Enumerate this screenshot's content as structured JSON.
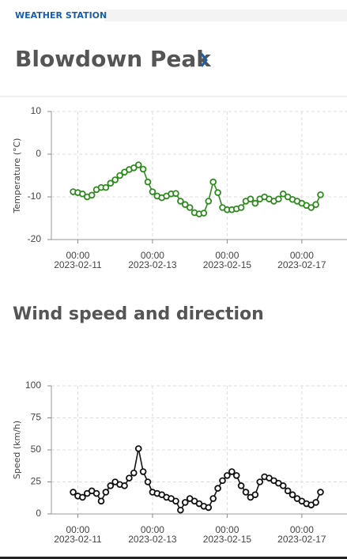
{
  "header": {
    "label": "WEATHER STATION",
    "title": "Blowdown Peak"
  },
  "chart_data": [
    {
      "type": "line",
      "y_label": "Temperature (°C)",
      "color": "#2e8b1e",
      "x": [
        "2023-02-10T21:00",
        "2023-02-11T00:00",
        "2023-02-11T03:00",
        "2023-02-11T06:00",
        "2023-02-11T09:00",
        "2023-02-11T12:00",
        "2023-02-11T15:00",
        "2023-02-11T18:00",
        "2023-02-11T21:00",
        "2023-02-12T00:00",
        "2023-02-12T03:00",
        "2023-02-12T06:00",
        "2023-02-12T09:00",
        "2023-02-12T12:00",
        "2023-02-12T15:00",
        "2023-02-12T18:00",
        "2023-02-12T21:00",
        "2023-02-13T00:00",
        "2023-02-13T03:00",
        "2023-02-13T06:00",
        "2023-02-13T09:00",
        "2023-02-13T12:00",
        "2023-02-13T15:00",
        "2023-02-13T18:00",
        "2023-02-13T21:00",
        "2023-02-14T00:00",
        "2023-02-14T03:00",
        "2023-02-14T06:00",
        "2023-02-14T09:00",
        "2023-02-14T12:00",
        "2023-02-14T15:00",
        "2023-02-14T18:00",
        "2023-02-14T21:00",
        "2023-02-15T00:00",
        "2023-02-15T03:00",
        "2023-02-15T06:00",
        "2023-02-15T09:00",
        "2023-02-15T12:00",
        "2023-02-15T15:00",
        "2023-02-15T18:00",
        "2023-02-15T21:00",
        "2023-02-16T00:00",
        "2023-02-16T03:00",
        "2023-02-16T06:00",
        "2023-02-16T09:00",
        "2023-02-16T12:00",
        "2023-02-16T15:00",
        "2023-02-16T18:00",
        "2023-02-16T21:00",
        "2023-02-17T00:00",
        "2023-02-17T03:00",
        "2023-02-17T06:00",
        "2023-02-17T09:00",
        "2023-02-17T12:00"
      ],
      "values": [
        -8.8,
        -9.0,
        -9.3,
        -10.0,
        -9.6,
        -8.3,
        -7.8,
        -7.8,
        -6.8,
        -6.0,
        -5.0,
        -4.2,
        -3.6,
        -3.2,
        -2.5,
        -3.5,
        -6.5,
        -8.8,
        -9.8,
        -10.2,
        -9.8,
        -9.3,
        -9.2,
        -11.0,
        -11.8,
        -12.5,
        -13.7,
        -14.0,
        -13.8,
        -11.0,
        -6.5,
        -9.0,
        -12.5,
        -13.0,
        -13.0,
        -12.8,
        -12.5,
        -11.0,
        -10.5,
        -11.5,
        -10.5,
        -10.0,
        -10.5,
        -11.0,
        -10.5,
        -9.3,
        -10.0,
        -10.6,
        -11.0,
        -11.5,
        -12.0,
        -12.5,
        -11.8,
        -9.5
      ],
      "xlim": [
        "2023-02-10T07:00",
        "2023-02-18T03:00"
      ],
      "xticks": [
        {
          "value": "2023-02-11T00:00",
          "label": [
            "00:00",
            "2023-02-11"
          ]
        },
        {
          "value": "2023-02-13T00:00",
          "label": [
            "00:00",
            "2023-02-13"
          ]
        },
        {
          "value": "2023-02-15T00:00",
          "label": [
            "00:00",
            "2023-02-15"
          ]
        },
        {
          "value": "2023-02-17T00:00",
          "label": [
            "00:00",
            "2023-02-17"
          ]
        }
      ],
      "ylim": [
        -20,
        10
      ],
      "yticks": [
        -20,
        -10,
        0,
        10
      ],
      "grid": true
    },
    {
      "type": "line",
      "title": "Wind speed and direction",
      "y_label": "Speed (km/h)",
      "color": "#111111",
      "x": [
        "2023-02-10T21:00",
        "2023-02-11T00:00",
        "2023-02-11T03:00",
        "2023-02-11T06:00",
        "2023-02-11T09:00",
        "2023-02-11T12:00",
        "2023-02-11T15:00",
        "2023-02-11T18:00",
        "2023-02-11T21:00",
        "2023-02-12T00:00",
        "2023-02-12T03:00",
        "2023-02-12T06:00",
        "2023-02-12T09:00",
        "2023-02-12T12:00",
        "2023-02-12T15:00",
        "2023-02-12T18:00",
        "2023-02-12T21:00",
        "2023-02-13T00:00",
        "2023-02-13T03:00",
        "2023-02-13T06:00",
        "2023-02-13T09:00",
        "2023-02-13T12:00",
        "2023-02-13T15:00",
        "2023-02-13T18:00",
        "2023-02-13T21:00",
        "2023-02-14T00:00",
        "2023-02-14T03:00",
        "2023-02-14T06:00",
        "2023-02-14T09:00",
        "2023-02-14T12:00",
        "2023-02-14T15:00",
        "2023-02-14T18:00",
        "2023-02-14T21:00",
        "2023-02-15T00:00",
        "2023-02-15T03:00",
        "2023-02-15T06:00",
        "2023-02-15T09:00",
        "2023-02-15T12:00",
        "2023-02-15T15:00",
        "2023-02-15T18:00",
        "2023-02-15T21:00",
        "2023-02-16T00:00",
        "2023-02-16T03:00",
        "2023-02-16T06:00",
        "2023-02-16T09:00",
        "2023-02-16T12:00",
        "2023-02-16T15:00",
        "2023-02-16T18:00",
        "2023-02-16T21:00",
        "2023-02-17T00:00",
        "2023-02-17T03:00",
        "2023-02-17T06:00",
        "2023-02-17T09:00",
        "2023-02-17T12:00"
      ],
      "values": [
        17,
        14,
        13,
        16,
        18,
        16,
        10,
        17,
        22,
        25,
        23,
        22,
        28,
        32,
        51,
        33,
        25,
        17,
        16,
        15,
        13,
        12,
        10,
        3,
        9,
        12,
        10,
        8,
        6,
        5,
        12,
        20,
        26,
        30,
        33,
        30,
        22,
        17,
        13,
        15,
        25,
        29,
        28,
        26,
        24,
        22,
        18,
        15,
        12,
        10,
        8,
        7,
        9,
        17
      ],
      "xlim": [
        "2023-02-10T07:00",
        "2023-02-18T03:00"
      ],
      "xticks": [
        {
          "value": "2023-02-11T00:00",
          "label": [
            "00:00",
            "2023-02-11"
          ]
        },
        {
          "value": "2023-02-13T00:00",
          "label": [
            "00:00",
            "2023-02-13"
          ]
        },
        {
          "value": "2023-02-15T00:00",
          "label": [
            "00:00",
            "2023-02-15"
          ]
        },
        {
          "value": "2023-02-17T00:00",
          "label": [
            "00:00",
            "2023-02-17"
          ]
        }
      ],
      "ylim": [
        0,
        100
      ],
      "yticks": [
        0,
        25,
        50,
        75,
        100
      ],
      "grid": true
    }
  ]
}
